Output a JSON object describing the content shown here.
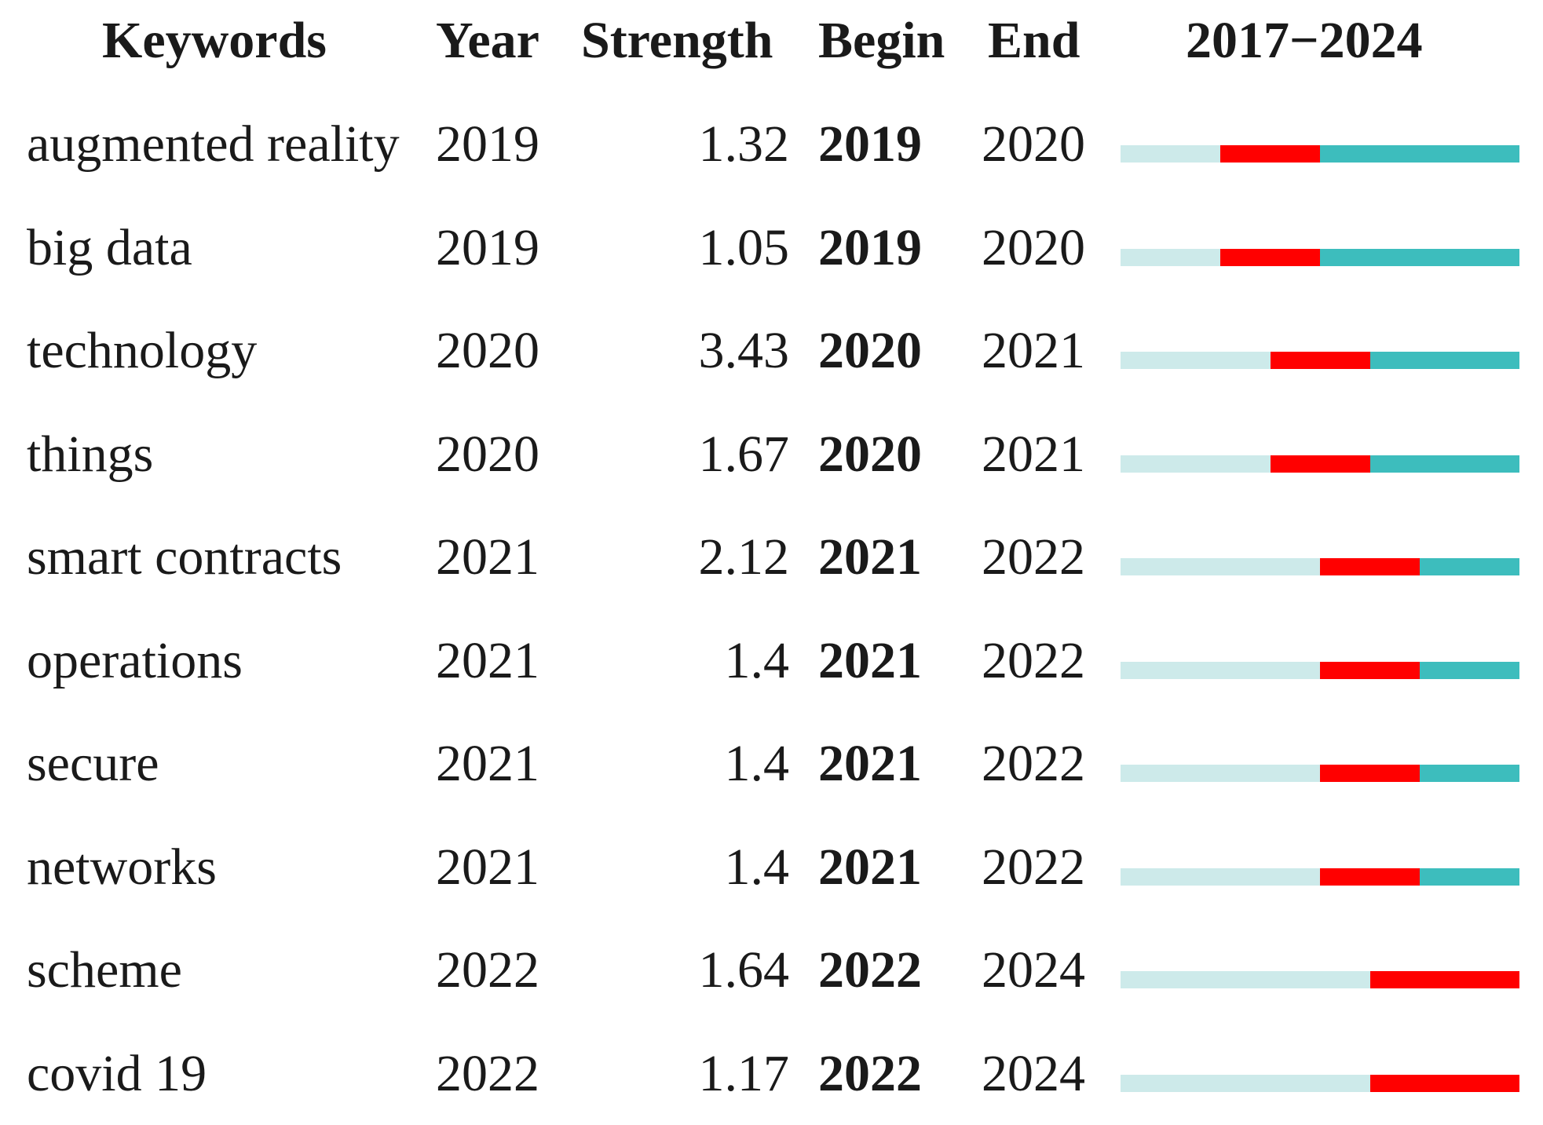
{
  "chart_data": {
    "type": "table",
    "columns": [
      "Keywords",
      "Year",
      "Strength",
      "Begin",
      "End",
      "2017−2024"
    ],
    "range": [
      2017,
      2024
    ],
    "colors": {
      "inactive": "#cdeaea",
      "active": "#3dbdbd",
      "burst": "#ff0000"
    },
    "rows": [
      {
        "keyword": "augmented reality",
        "year": "2019",
        "strength": "1.32",
        "begin": "2019",
        "end": "2020"
      },
      {
        "keyword": "big data",
        "year": "2019",
        "strength": "1.05",
        "begin": "2019",
        "end": "2020"
      },
      {
        "keyword": "technology",
        "year": "2020",
        "strength": "3.43",
        "begin": "2020",
        "end": "2021"
      },
      {
        "keyword": "things",
        "year": "2020",
        "strength": "1.67",
        "begin": "2020",
        "end": "2021"
      },
      {
        "keyword": "smart contracts",
        "year": "2021",
        "strength": "2.12",
        "begin": "2021",
        "end": "2022"
      },
      {
        "keyword": "operations",
        "year": "2021",
        "strength": "1.4",
        "begin": "2021",
        "end": "2022"
      },
      {
        "keyword": "secure",
        "year": "2021",
        "strength": "1.4",
        "begin": "2021",
        "end": "2022"
      },
      {
        "keyword": "networks",
        "year": "2021",
        "strength": "1.4",
        "begin": "2021",
        "end": "2022"
      },
      {
        "keyword": "scheme",
        "year": "2022",
        "strength": "1.64",
        "begin": "2022",
        "end": "2024"
      },
      {
        "keyword": "covid 19",
        "year": "2022",
        "strength": "1.17",
        "begin": "2022",
        "end": "2024"
      }
    ]
  }
}
